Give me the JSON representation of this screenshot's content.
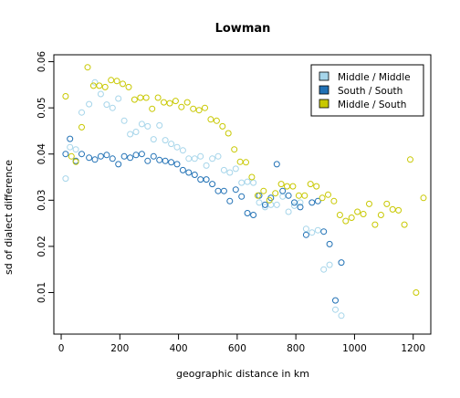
{
  "chart_data": {
    "type": "scatter",
    "title": "Lowman",
    "xlabel": "geographic distance in km",
    "ylabel": "sd of dialect difference",
    "xlim": [
      -25,
      1260
    ],
    "ylim": [
      0.001,
      0.0615
    ],
    "xticks": [
      0,
      200,
      400,
      600,
      800,
      1000,
      1200
    ],
    "yticks": [
      0.01,
      0.02,
      0.03,
      0.04,
      0.05,
      0.06
    ],
    "ytick_labels": [
      "0.01",
      "0.02",
      "0.03",
      "0.04",
      "0.05",
      "0.06"
    ],
    "grid": false,
    "legend_position": "top-right",
    "series": [
      {
        "name": "Middle / Middle",
        "color": "#a6d5ea",
        "x": [
          15,
          30,
          50,
          70,
          95,
          115,
          135,
          155,
          175,
          195,
          215,
          235,
          255,
          275,
          295,
          315,
          335,
          355,
          375,
          395,
          415,
          435,
          455,
          475,
          495,
          515,
          535,
          555,
          575,
          595,
          615,
          635,
          655,
          675,
          695,
          715,
          735,
          755,
          775,
          795,
          815,
          835,
          855,
          875,
          895,
          915,
          935,
          955
        ],
        "y": [
          0.0347,
          0.0415,
          0.041,
          0.049,
          0.0508,
          0.0555,
          0.053,
          0.0507,
          0.05,
          0.052,
          0.0472,
          0.0443,
          0.0448,
          0.0465,
          0.046,
          0.0432,
          0.0462,
          0.043,
          0.0422,
          0.0415,
          0.0408,
          0.039,
          0.039,
          0.0395,
          0.0375,
          0.039,
          0.0395,
          0.0365,
          0.036,
          0.0368,
          0.0338,
          0.034,
          0.0338,
          0.0295,
          0.0285,
          0.029,
          0.029,
          0.0308,
          0.0275,
          0.0288,
          0.0295,
          0.0238,
          0.023,
          0.0235,
          0.015,
          0.016,
          0.0063,
          0.005
        ]
      },
      {
        "name": "South / South",
        "color": "#2171b5",
        "x": [
          15,
          30,
          50,
          70,
          95,
          115,
          135,
          155,
          175,
          195,
          215,
          235,
          255,
          275,
          295,
          315,
          335,
          355,
          375,
          395,
          415,
          435,
          455,
          475,
          495,
          515,
          535,
          555,
          575,
          595,
          615,
          635,
          655,
          675,
          695,
          715,
          735,
          755,
          775,
          795,
          815,
          835,
          855,
          875,
          895,
          915,
          935,
          955
        ],
        "y": [
          0.04,
          0.0433,
          0.0385,
          0.04,
          0.0392,
          0.0388,
          0.0395,
          0.0398,
          0.039,
          0.0378,
          0.0395,
          0.0392,
          0.0398,
          0.04,
          0.0385,
          0.0395,
          0.0387,
          0.0385,
          0.0382,
          0.0378,
          0.0365,
          0.036,
          0.0355,
          0.0345,
          0.0345,
          0.0335,
          0.032,
          0.032,
          0.0298,
          0.0323,
          0.0308,
          0.0272,
          0.0268,
          0.031,
          0.029,
          0.0305,
          0.0378,
          0.032,
          0.031,
          0.0295,
          0.0285,
          0.0225,
          0.0295,
          0.0298,
          0.0232,
          0.0205,
          0.0083,
          0.0165
        ]
      },
      {
        "name": "Middle / South",
        "color": "#c8c800",
        "x": [
          15,
          35,
          50,
          70,
          90,
          110,
          130,
          150,
          170,
          190,
          210,
          230,
          250,
          270,
          290,
          310,
          330,
          350,
          370,
          390,
          410,
          430,
          450,
          470,
          490,
          510,
          530,
          550,
          570,
          590,
          610,
          630,
          650,
          670,
          690,
          710,
          730,
          750,
          770,
          790,
          810,
          830,
          850,
          870,
          890,
          910,
          930,
          950,
          970,
          990,
          1010,
          1030,
          1050,
          1070,
          1090,
          1110,
          1130,
          1150,
          1170,
          1190,
          1210,
          1235
        ],
        "y": [
          0.0525,
          0.0395,
          0.0383,
          0.0458,
          0.0588,
          0.0548,
          0.0548,
          0.0545,
          0.056,
          0.0558,
          0.0552,
          0.0545,
          0.0518,
          0.0522,
          0.0522,
          0.0498,
          0.0522,
          0.0512,
          0.051,
          0.0515,
          0.0502,
          0.0512,
          0.0498,
          0.0495,
          0.05,
          0.0475,
          0.0472,
          0.046,
          0.0445,
          0.041,
          0.0383,
          0.0382,
          0.035,
          0.031,
          0.032,
          0.03,
          0.0315,
          0.0335,
          0.033,
          0.033,
          0.031,
          0.031,
          0.0335,
          0.033,
          0.0305,
          0.0312,
          0.0298,
          0.0268,
          0.0255,
          0.0262,
          0.0275,
          0.027,
          0.0292,
          0.0247,
          0.0268,
          0.0292,
          0.028,
          0.0278,
          0.0247,
          0.0388,
          0.01,
          0.0305
        ]
      }
    ]
  }
}
